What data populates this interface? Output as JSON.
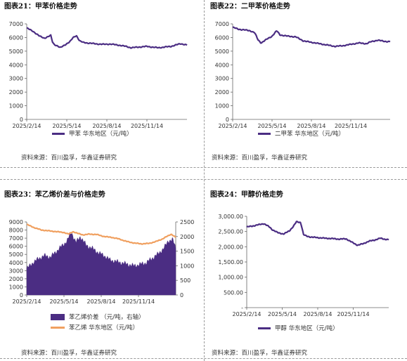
{
  "panels": [
    {
      "title": "图表21：甲苯价格走势",
      "source": "资料来源：百川盈孚，华鑫证券研究",
      "legend": [
        "甲苯  华东地区（元/吨）"
      ],
      "colors": {
        "line": "#4b2d83"
      }
    },
    {
      "title": "图表22：二甲苯价格走势",
      "source": "资料来源：百川盈孚，华鑫证券研究",
      "legend": [
        "二甲苯  华东地区（元/吨）"
      ],
      "colors": {
        "line": "#4b2d83"
      }
    },
    {
      "title": "图表23：苯乙烯价差与价格走势",
      "source": "资料来源：百川盈孚，华鑫证券研究",
      "legend": [
        "苯乙烯价差  （元/吨，右轴）",
        "苯乙烯  华东地区（元/吨）"
      ],
      "colors": {
        "area": "#4b2d83",
        "line": "#f0a060"
      }
    },
    {
      "title": "图表24：甲醇价格走势",
      "source": "资料来源：百川盈孚，华鑫证券研究",
      "legend": [
        "甲醇    华东地区（元/吨）"
      ],
      "colors": {
        "line": "#4b2d83"
      }
    }
  ],
  "chart_data": [
    {
      "type": "line",
      "x_ticks": [
        "2025/2/14",
        "2025/5/14",
        "2025/8/14",
        "2025/11/14"
      ],
      "ylim": [
        0,
        7000
      ],
      "y_ticks": [
        "0",
        "1000",
        "2000",
        "3000",
        "4000",
        "5000",
        "6000",
        "7000"
      ],
      "series": [
        {
          "name": "甲苯  华东地区（元/吨）",
          "x": [
            0,
            0.04,
            0.08,
            0.11,
            0.15,
            0.16,
            0.17,
            0.19,
            0.21,
            0.25,
            0.27,
            0.29,
            0.31,
            0.33,
            0.35,
            0.38,
            0.42,
            0.47,
            0.52,
            0.57,
            0.62,
            0.65,
            0.7,
            0.75,
            0.78,
            0.82,
            0.86,
            0.9,
            0.93,
            0.96,
            0.98,
            1
          ],
          "values": [
            6700,
            6450,
            6100,
            5950,
            6150,
            5700,
            5500,
            5400,
            5250,
            5550,
            5700,
            6000,
            6150,
            5750,
            5650,
            5600,
            5550,
            5500,
            5520,
            5450,
            5350,
            5250,
            5300,
            5350,
            5300,
            5250,
            5300,
            5350,
            5450,
            5550,
            5500,
            5450
          ]
        }
      ]
    },
    {
      "type": "line",
      "x_ticks": [
        "2025/2/14",
        "2025/5/14",
        "2025/8/14",
        "2025/11/14"
      ],
      "ylim": [
        0,
        7000
      ],
      "y_ticks": [
        "0",
        "1000",
        "2000",
        "3000",
        "4000",
        "5000",
        "6000",
        "7000"
      ],
      "series": [
        {
          "name": "二甲苯  华东地区（元/吨）",
          "x": [
            0,
            0.04,
            0.08,
            0.11,
            0.14,
            0.16,
            0.18,
            0.2,
            0.22,
            0.25,
            0.28,
            0.3,
            0.32,
            0.35,
            0.4,
            0.45,
            0.5,
            0.55,
            0.6,
            0.65,
            0.7,
            0.75,
            0.8,
            0.85,
            0.88,
            0.92,
            0.95,
            0.98,
            1
          ],
          "values": [
            6750,
            6600,
            6550,
            6500,
            6350,
            5850,
            5600,
            5750,
            5900,
            6100,
            6500,
            6200,
            6150,
            6100,
            6050,
            5750,
            5650,
            5550,
            5450,
            5350,
            5400,
            5500,
            5600,
            5550,
            5700,
            5800,
            5750,
            5700,
            5700
          ]
        }
      ]
    },
    {
      "type": "area",
      "x_ticks": [
        "2025/2/14",
        "2025/5/14",
        "2025/8/14",
        "2025/11/14"
      ],
      "ylim": [
        0,
        9000
      ],
      "y_ticks": [
        "0",
        "1000",
        "2000",
        "3000",
        "4000",
        "5000",
        "6000",
        "7000",
        "8000",
        "9000"
      ],
      "y2lim": [
        0,
        2500
      ],
      "y2_ticks": [
        "0",
        "500",
        "1000",
        "1500",
        "2000",
        "2500"
      ],
      "series": [
        {
          "name": "苯乙烯价差  （元/吨，右轴）",
          "axis": "right",
          "x": [
            0,
            0.04,
            0.08,
            0.12,
            0.16,
            0.2,
            0.24,
            0.27,
            0.3,
            0.33,
            0.36,
            0.4,
            0.44,
            0.48,
            0.52,
            0.56,
            0.6,
            0.64,
            0.68,
            0.72,
            0.76,
            0.8,
            0.84,
            0.88,
            0.92,
            0.95,
            0.98,
            1
          ],
          "values": [
            900,
            1100,
            1250,
            1350,
            1300,
            1500,
            1700,
            1850,
            2150,
            1800,
            2000,
            1700,
            1600,
            1450,
            1350,
            1200,
            1150,
            1100,
            1050,
            1000,
            1050,
            1100,
            1250,
            1400,
            1600,
            1850,
            1900,
            1600
          ]
        },
        {
          "name": "苯乙烯  华东地区（元/吨）",
          "axis": "left",
          "x": [
            0,
            0.05,
            0.1,
            0.15,
            0.2,
            0.25,
            0.28,
            0.31,
            0.34,
            0.38,
            0.42,
            0.47,
            0.52,
            0.57,
            0.62,
            0.67,
            0.72,
            0.77,
            0.82,
            0.87,
            0.91,
            0.94,
            0.97,
            1
          ],
          "values": [
            8700,
            8300,
            8000,
            7900,
            7800,
            7700,
            7500,
            7800,
            7600,
            7400,
            7500,
            7450,
            7200,
            7100,
            6900,
            6600,
            6400,
            6300,
            6350,
            6600,
            6900,
            7200,
            7500,
            7100
          ]
        }
      ]
    },
    {
      "type": "line",
      "x_ticks": [
        "2025/2/14",
        "2025/5/14",
        "2025/8/14",
        "2025/11/14"
      ],
      "ylim": [
        0,
        3000
      ],
      "y_ticks": [
        "-",
        "500.00",
        "1,000.00",
        "1,500.00",
        "2,000.00",
        "2,500.00",
        "3,000.00"
      ],
      "series": [
        {
          "name": "甲醇    华东地区（元/吨）",
          "x": [
            0,
            0.04,
            0.08,
            0.12,
            0.16,
            0.18,
            0.22,
            0.26,
            0.3,
            0.33,
            0.35,
            0.38,
            0.4,
            0.42,
            0.45,
            0.5,
            0.55,
            0.6,
            0.65,
            0.7,
            0.74,
            0.78,
            0.82,
            0.86,
            0.9,
            0.94,
            0.97,
            1
          ],
          "values": [
            2650,
            2680,
            2720,
            2760,
            2650,
            2560,
            2460,
            2420,
            2520,
            2680,
            2820,
            2800,
            2400,
            2350,
            2320,
            2300,
            2280,
            2270,
            2250,
            2260,
            2150,
            2050,
            2100,
            2180,
            2220,
            2280,
            2250,
            2230
          ]
        }
      ]
    }
  ]
}
